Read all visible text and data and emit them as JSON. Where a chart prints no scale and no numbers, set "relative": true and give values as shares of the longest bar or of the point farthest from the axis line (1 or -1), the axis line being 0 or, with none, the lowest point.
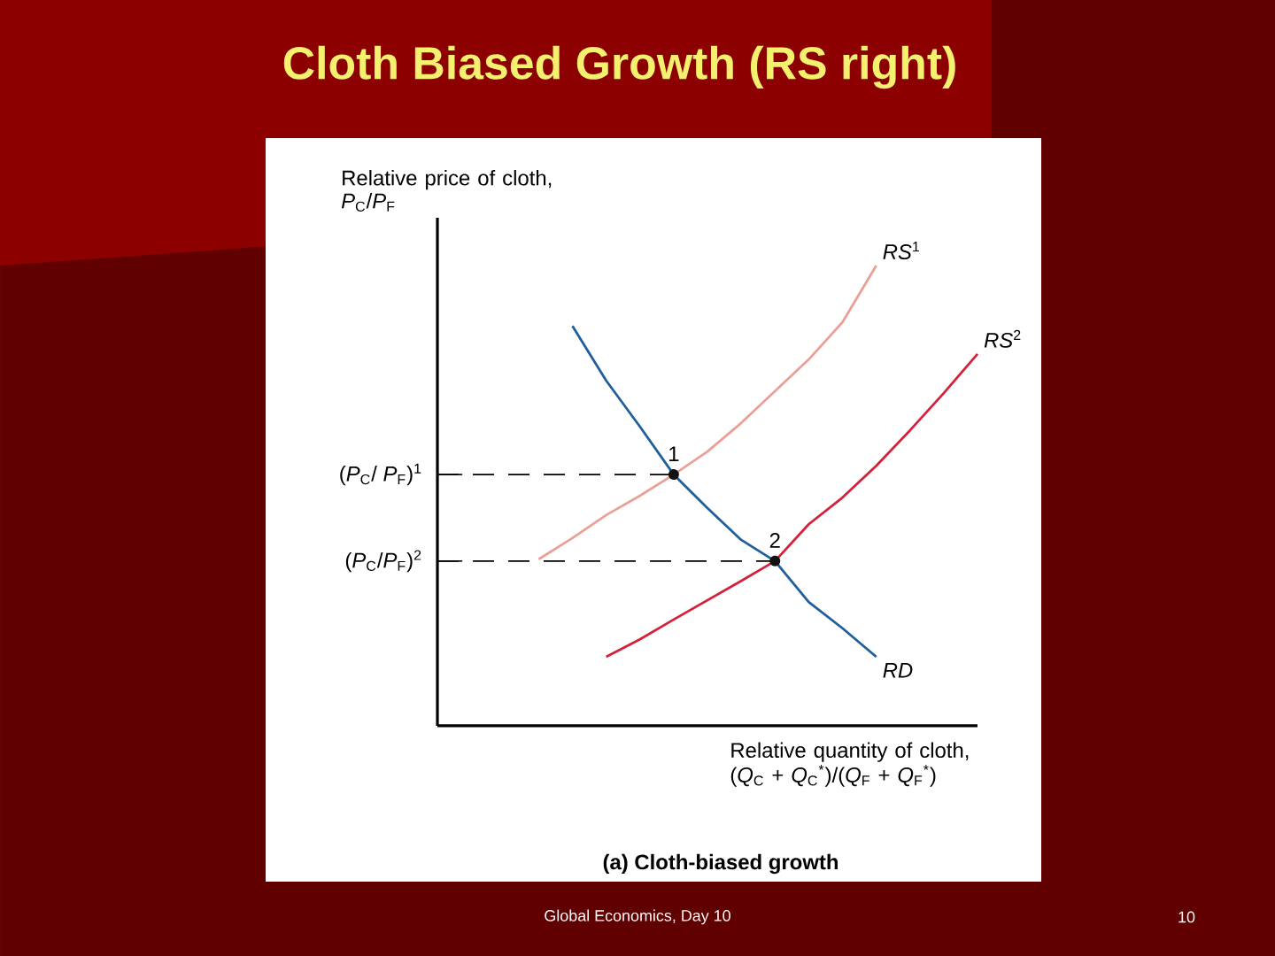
{
  "chart_data": {
    "type": "line",
    "title": "Cloth Biased Growth (RS right)",
    "xlabel": "Relative quantity of cloth, (*Q*$_{C}$ + *Q*$_{C}$$^{*}$)/(*Q*$_{F}$ + *Q*$_{F}$$^{*}$)",
    "ylabel": "Relative price of cloth, *P*$_{C}$/*P*$_{F}$",
    "relative": true,
    "categories": [
      null,
      null,
      null,
      null,
      null,
      null,
      null,
      null,
      null,
      null,
      null,
      null,
      null,
      null,
      null,
      null
    ],
    "series": [
      {
        "name": "*RS*$^{1}$",
        "color": "#eba095",
        "values": [
          null,
          null,
          0.362,
          0.408,
          0.458,
          0.5,
          0.546,
          0.596,
          0.658,
          0.727,
          0.796,
          0.877,
          1,
          null,
          null,
          null
        ]
      },
      {
        "name": "*RS*$^{2}$",
        "color": "#d4213a",
        "values": [
          null,
          null,
          null,
          null,
          0.15,
          0.188,
          0.231,
          0.273,
          0.315,
          0.358,
          0.438,
          0.496,
          0.565,
          0.642,
          0.723,
          0.808
        ]
      },
      {
        "name": "*RD*",
        "color": "#1f5f9c",
        "values": [
          null,
          null,
          null,
          0.869,
          0.75,
          0.65,
          0.546,
          0.473,
          0.404,
          0.358,
          0.269,
          0.212,
          0.15,
          null,
          null,
          null
        ]
      }
    ],
    "ref_lines": [
      {
        "axis": "y",
        "value": 0.546,
        "label": "(*P*$_{C}$/ *P*$_{F}$)$^{1}$",
        "color": "#000000",
        "line_style": "dashed"
      },
      {
        "axis": "y",
        "value": 0.358,
        "label": "(*P*$_{C}$/*P*$_{F}$)$^{2}$",
        "color": "#000000",
        "line_style": "dashed"
      }
    ],
    "annotations": [
      "(a) Cloth-biased growth",
      {
        "text": "1",
        "y": 0.546
      },
      {
        "text": "2",
        "y": 0.358
      },
      "Global Economics, Day 10",
      "10"
    ]
  }
}
